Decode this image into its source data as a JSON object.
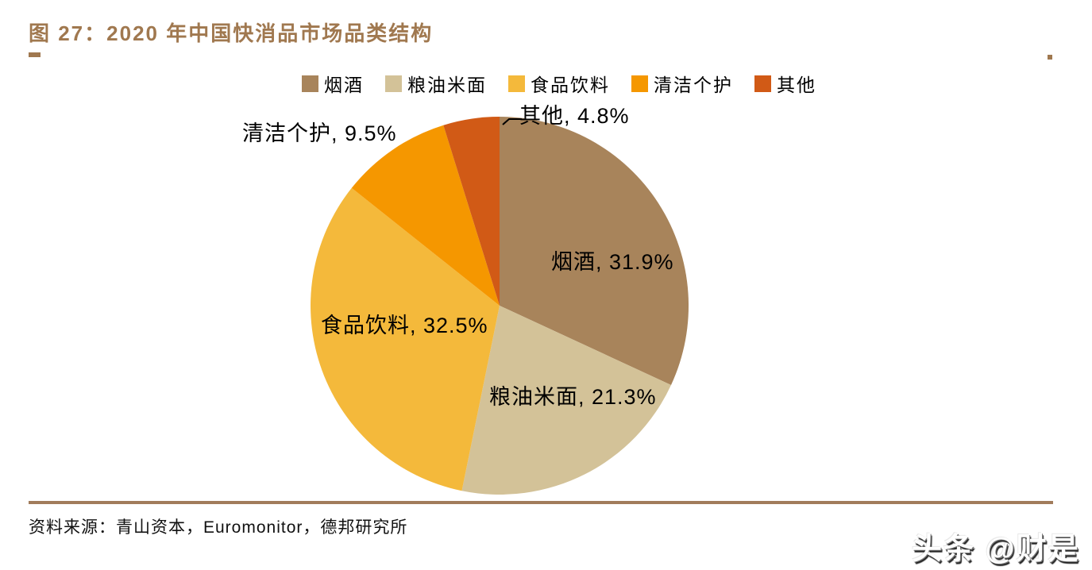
{
  "figure": {
    "title": "图 27：2020 年中国快消品市场品类结构",
    "source": "资料来源：青山资本，Euromonitor，德邦研究所",
    "watermark": "头条 @财是"
  },
  "colors": {
    "title_brown": "#A0784F",
    "divider_brown": "#A17C5B",
    "label_text": "#000000"
  },
  "chart_data": {
    "type": "pie",
    "title": "2020 年中国快消品市场品类结构",
    "categories": [
      "烟酒",
      "粮油米面",
      "食品饮料",
      "清洁个护",
      "其他"
    ],
    "values": [
      31.9,
      21.3,
      32.5,
      9.5,
      4.8
    ],
    "unit": "%",
    "slice_colors": [
      "#A8845B",
      "#D3C298",
      "#F4B93B",
      "#F59700",
      "#D15A16"
    ],
    "labels": [
      "烟酒, 31.9%",
      "粮油米面, 21.3%",
      "食品饮料, 32.5%",
      "清洁个护, 9.5%",
      "其他, 4.8%"
    ],
    "legend_position": "top",
    "start_angle_deg": 0,
    "direction": "clockwise"
  }
}
